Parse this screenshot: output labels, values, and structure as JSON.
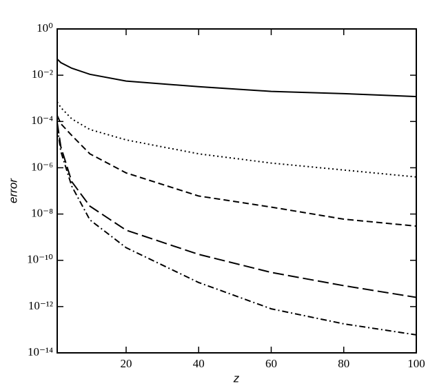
{
  "chart_data": {
    "type": "line",
    "xlabel": "z",
    "ylabel": "error",
    "log_y": true,
    "xlim": [
      1,
      100
    ],
    "xticks": [
      20,
      40,
      60,
      80,
      100
    ],
    "ylim": [
      1e-14,
      1
    ],
    "yticks": [
      {
        "value": 1,
        "label": "10⁰"
      },
      {
        "value": 0.01,
        "label": "10⁻²"
      },
      {
        "value": 0.0001,
        "label": "10⁻⁴"
      },
      {
        "value": 1e-06,
        "label": "10⁻⁶"
      },
      {
        "value": 1e-08,
        "label": "10⁻⁸"
      },
      {
        "value": 1e-10,
        "label": "10⁻¹⁰"
      },
      {
        "value": 1e-12,
        "label": "10⁻¹²"
      },
      {
        "value": 1e-14,
        "label": "10⁻¹⁴"
      }
    ],
    "x": [
      1,
      2,
      5,
      10,
      20,
      40,
      60,
      80,
      100
    ],
    "series": [
      {
        "color": "#000000",
        "dash": "solid",
        "values": [
          0.05,
          0.035,
          0.02,
          0.011,
          0.0056,
          0.0032,
          0.002,
          0.0016,
          0.0012
        ]
      },
      {
        "color": "#000000",
        "dash": "dotted",
        "values": [
          0.0007,
          0.0004,
          0.00013,
          4.5e-05,
          1.6e-05,
          4e-06,
          1.6e-06,
          8e-07,
          4e-07
        ]
      },
      {
        "color": "#000000",
        "dash": "dashed",
        "values": [
          0.00018,
          8e-05,
          2.5e-05,
          4e-06,
          6e-07,
          6e-08,
          2e-08,
          6e-09,
          3e-09
        ]
      },
      {
        "color": "#000000",
        "dash": "long-dashed",
        "values": [
          9e-05,
          8e-06,
          2.5e-07,
          2.2e-08,
          2e-09,
          1.8e-10,
          3e-11,
          8e-12,
          2.5e-12
        ]
      },
      {
        "color": "#000000",
        "dash": "dash-dot",
        "values": [
          6e-05,
          5e-06,
          1.6e-07,
          5.6e-09,
          3.5e-10,
          1.1e-11,
          8e-13,
          1.8e-13,
          6e-14
        ]
      }
    ]
  }
}
